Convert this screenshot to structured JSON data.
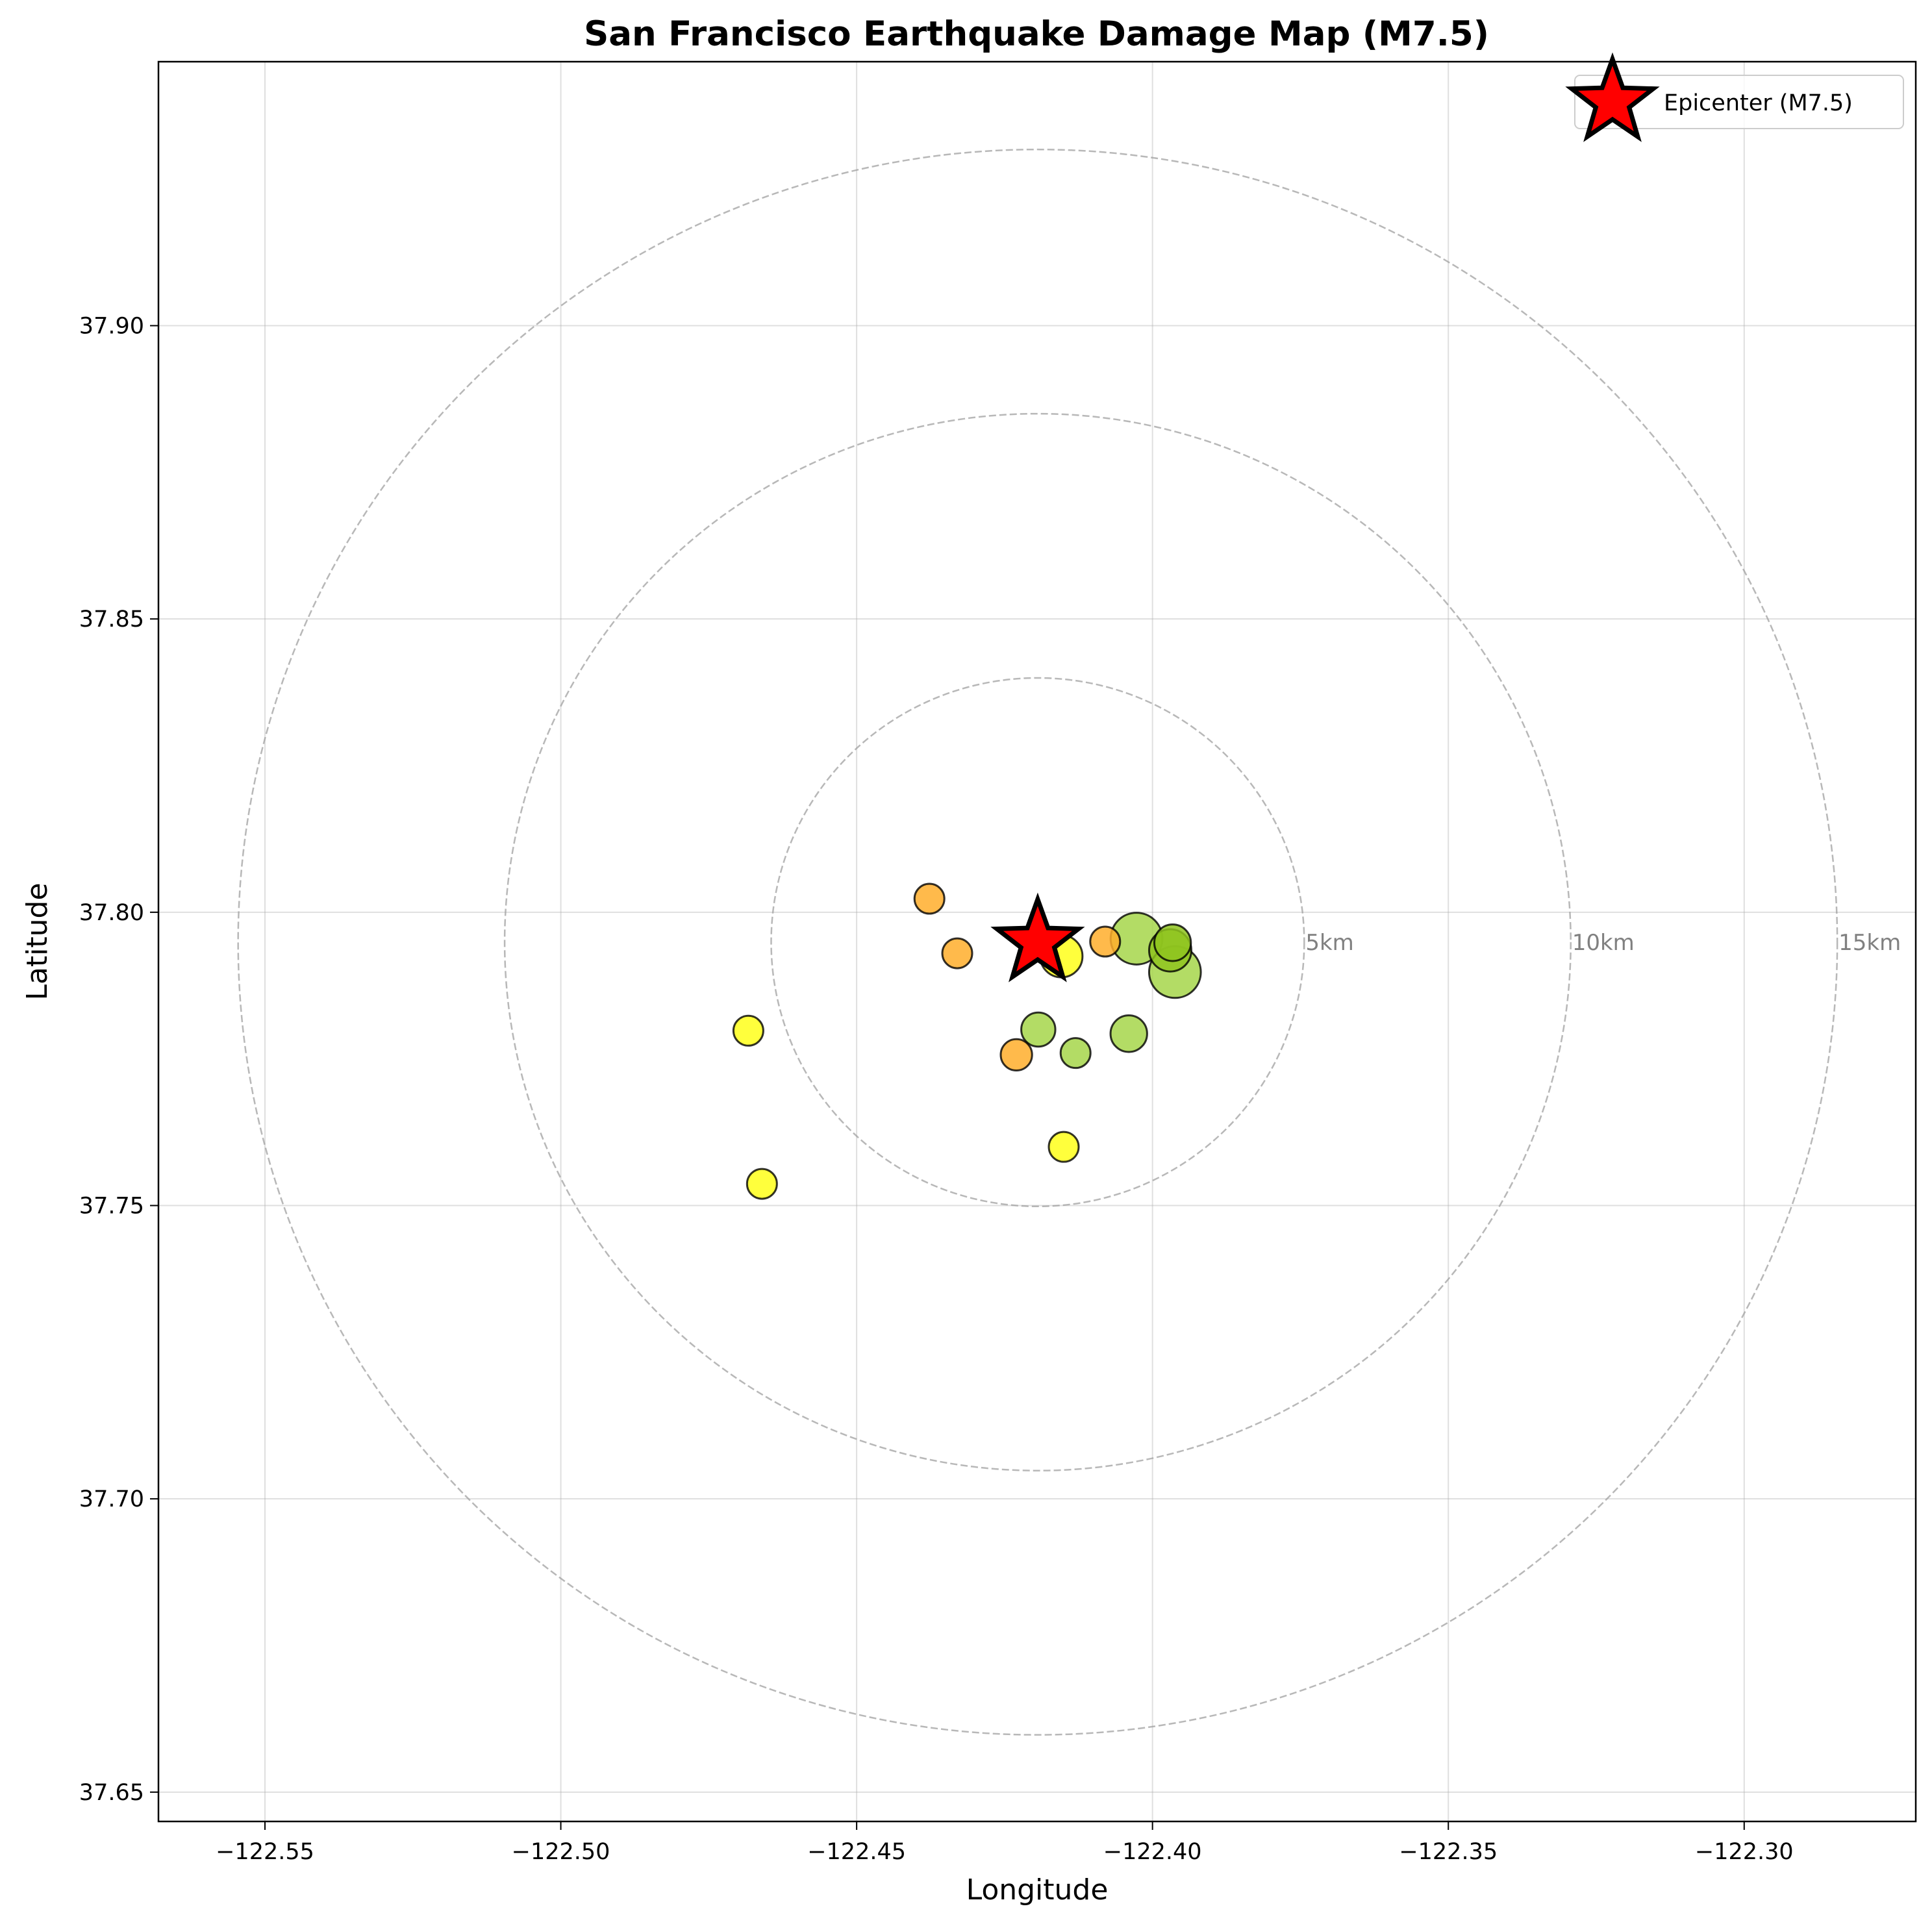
{
  "chart_data": {
    "type": "scatter",
    "title": "San Francisco Earthquake Damage Map (M7.5)",
    "xlabel": "Longitude",
    "ylabel": "Latitude",
    "xlim": [
      -122.568,
      -122.271
    ],
    "ylim": [
      37.645,
      37.945
    ],
    "xticks": [
      -122.55,
      -122.5,
      -122.45,
      -122.4,
      -122.35,
      -122.3
    ],
    "xtick_labels": [
      "−122.55",
      "−122.50",
      "−122.45",
      "−122.40",
      "−122.35",
      "−122.30"
    ],
    "yticks": [
      37.65,
      37.7,
      37.75,
      37.8,
      37.85,
      37.9
    ],
    "ytick_labels": [
      "37.65",
      "37.70",
      "37.75",
      "37.80",
      "37.85",
      "37.90"
    ],
    "grid": true,
    "legend_position": "top-right",
    "epicenter": {
      "lon": -122.4194,
      "lat": 37.7949,
      "label": "Epicenter (M7.5)",
      "color": "#ff0000"
    },
    "rings": [
      {
        "radius_km": 5,
        "label": "5km"
      },
      {
        "radius_km": 10,
        "label": "10km"
      },
      {
        "radius_km": 15,
        "label": "15km"
      }
    ],
    "colors": {
      "yellow": "#ffff1a",
      "orange": "#ffae2b",
      "green": "#a6d64a",
      "dark_green": "#8fc41f"
    },
    "points": [
      {
        "lon": -122.4377,
        "lat": 37.8023,
        "size": 1,
        "color": "orange"
      },
      {
        "lon": -122.433,
        "lat": 37.793,
        "size": 1,
        "color": "orange"
      },
      {
        "lon": -122.4154,
        "lat": 37.7925,
        "size": 2,
        "color": "yellow"
      },
      {
        "lon": -122.408,
        "lat": 37.795,
        "size": 1,
        "color": "orange"
      },
      {
        "lon": -122.4027,
        "lat": 37.7955,
        "size": 3,
        "color": "green"
      },
      {
        "lon": -122.397,
        "lat": 37.7935,
        "size": 2,
        "color": "dark_green"
      },
      {
        "lon": -122.3966,
        "lat": 37.7948,
        "size": 1.5,
        "color": "dark_green"
      },
      {
        "lon": -122.3962,
        "lat": 37.7898,
        "size": 3,
        "color": "green"
      },
      {
        "lon": -122.4683,
        "lat": 37.7798,
        "size": 1,
        "color": "yellow"
      },
      {
        "lon": -122.4193,
        "lat": 37.78,
        "size": 1.3,
        "color": "green"
      },
      {
        "lon": -122.404,
        "lat": 37.7793,
        "size": 1.5,
        "color": "green"
      },
      {
        "lon": -122.423,
        "lat": 37.7757,
        "size": 1.1,
        "color": "orange"
      },
      {
        "lon": -122.413,
        "lat": 37.776,
        "size": 1,
        "color": "green"
      },
      {
        "lon": -122.415,
        "lat": 37.76,
        "size": 1,
        "color": "yellow"
      },
      {
        "lon": -122.466,
        "lat": 37.7537,
        "size": 1,
        "color": "yellow"
      }
    ]
  }
}
